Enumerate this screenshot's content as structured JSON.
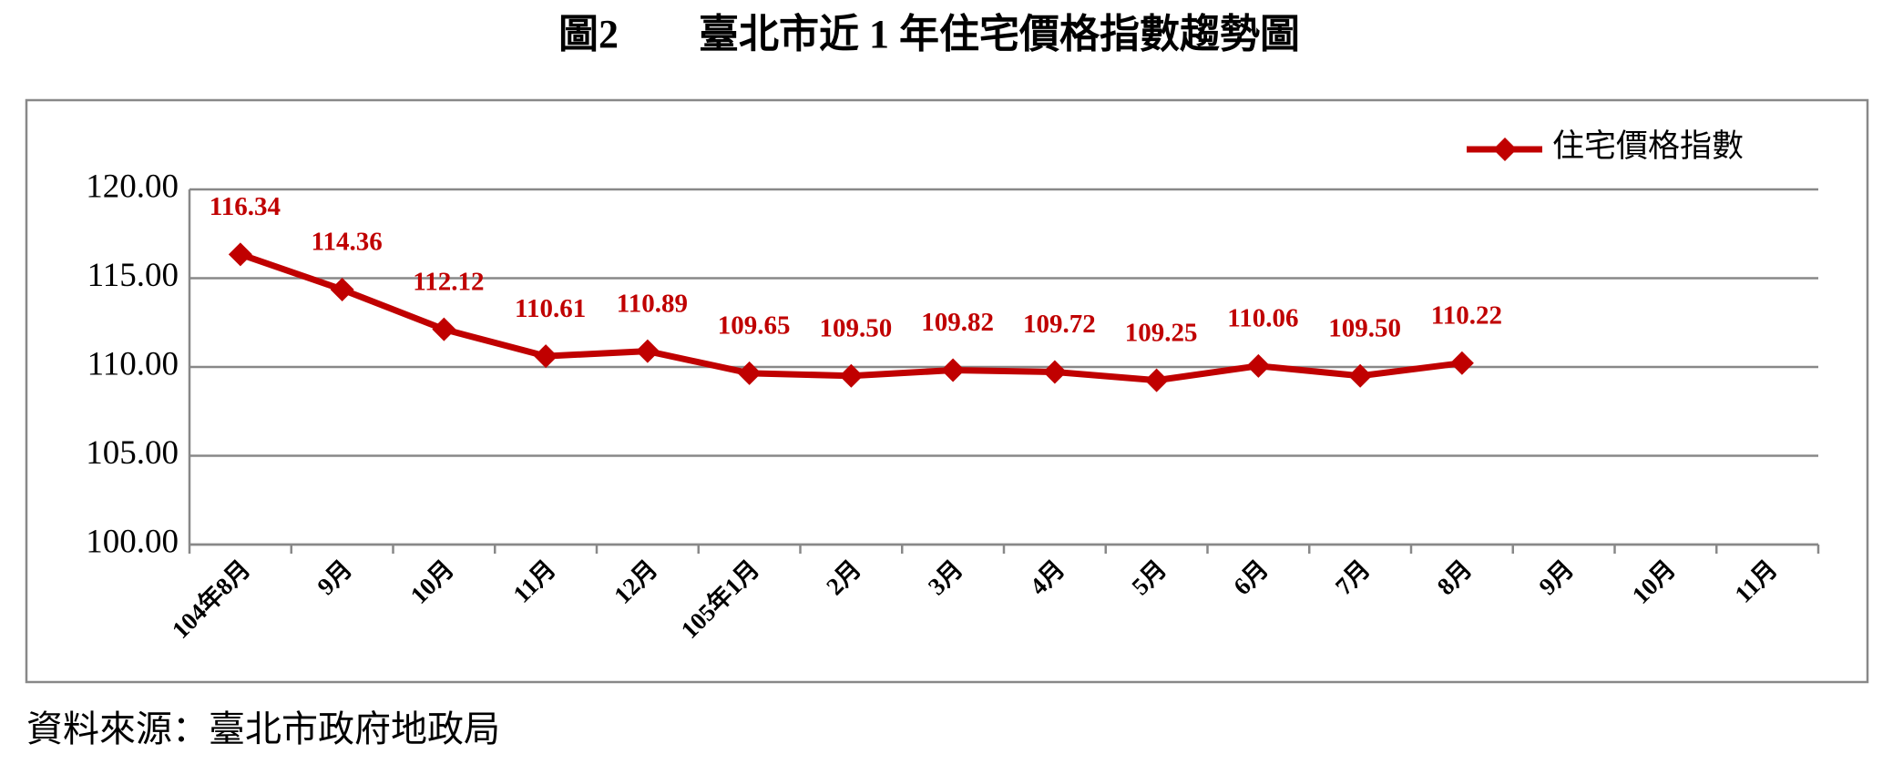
{
  "chart_data": {
    "type": "line",
    "title": "圖2　　臺北市近 1 年住宅價格指數趨勢圖",
    "source": "資料來源：臺北市政府地政局",
    "categories": [
      "104年8月",
      "9月",
      "10月",
      "11月",
      "12月",
      "105年1月",
      "2月",
      "3月",
      "4月",
      "5月",
      "6月",
      "7月",
      "8月",
      "9月",
      "10月",
      "11月"
    ],
    "series": [
      {
        "name": "住宅價格指數",
        "color": "#c00000",
        "values": [
          116.34,
          114.36,
          112.12,
          110.61,
          110.89,
          109.65,
          109.5,
          109.82,
          109.72,
          109.25,
          110.06,
          109.5,
          110.22,
          null,
          null,
          null
        ],
        "value_labels": [
          "116.34",
          "114.36",
          "112.12",
          "110.61",
          "110.89",
          "109.65",
          "109.50",
          "109.82",
          "109.72",
          "109.25",
          "110.06",
          "109.50",
          "110.22",
          null,
          null,
          null
        ]
      }
    ],
    "ylim": [
      100,
      120
    ],
    "yticks": [
      {
        "value": 100,
        "label": "100.00"
      },
      {
        "value": 105,
        "label": "105.00"
      },
      {
        "value": 110,
        "label": "110.00"
      },
      {
        "value": 115,
        "label": "115.00"
      },
      {
        "value": 120,
        "label": "120.00"
      }
    ],
    "grid": true,
    "legend": "top-right"
  }
}
